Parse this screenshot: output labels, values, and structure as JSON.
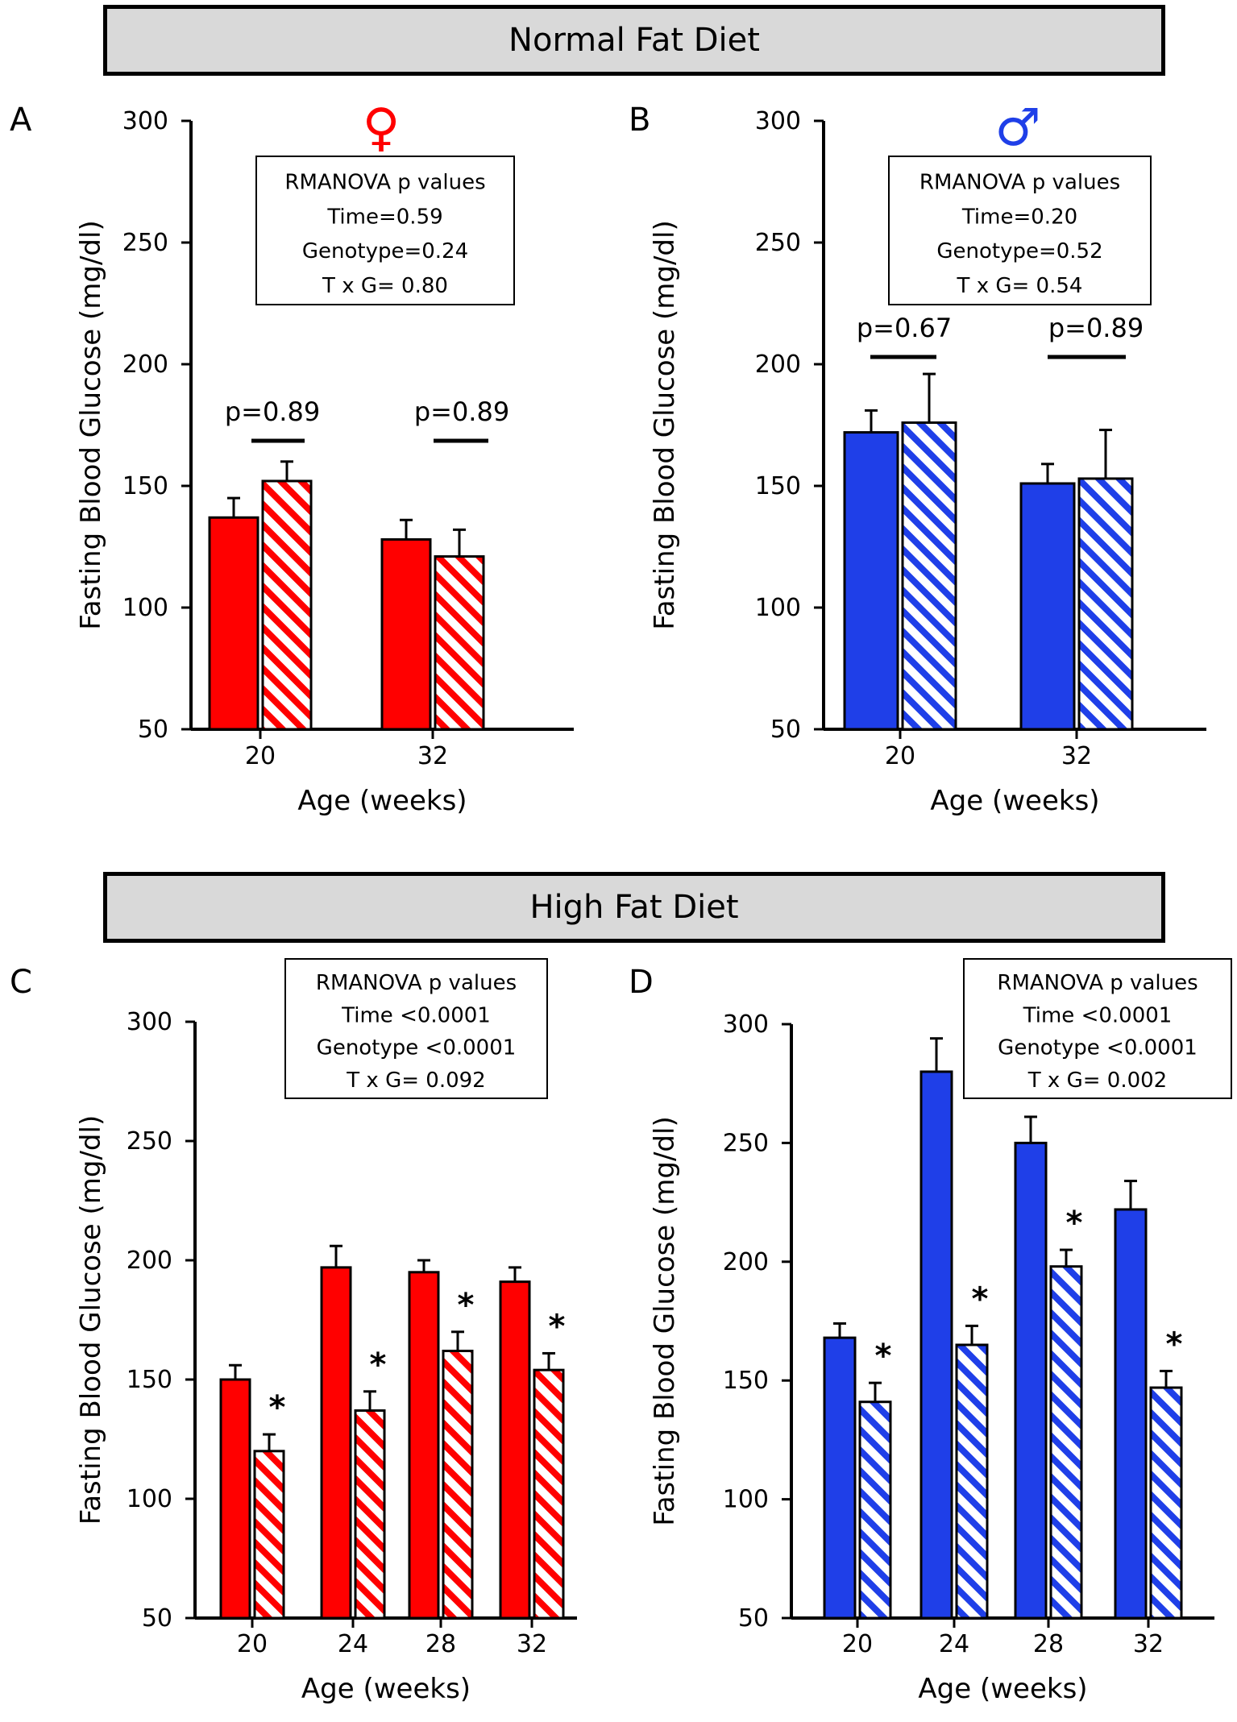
{
  "banners": {
    "normal": "Normal Fat Diet",
    "high": "High Fat Diet"
  },
  "colors": {
    "female": "#ff0000",
    "male": "#1f3fe8"
  },
  "chart_data": [
    {
      "id": "A",
      "type": "bar",
      "letter": "A",
      "symbol": "♀",
      "sex": "female",
      "title": "",
      "xlabel": "Age (weeks)",
      "ylabel": "Fasting Blood Glucose (mg/dl)",
      "ylim": [
        50,
        300
      ],
      "yticks": [
        "300",
        "250",
        "200",
        "150",
        "100",
        "50"
      ],
      "categories": [
        "20",
        "32"
      ],
      "series": [
        {
          "name": "solid",
          "values": [
            137,
            128
          ],
          "errors": [
            8,
            8
          ]
        },
        {
          "name": "hatched",
          "values": [
            152,
            121
          ],
          "errors": [
            8,
            11
          ]
        }
      ],
      "stats": [
        "RMANOVA p values",
        "Time=0.59",
        "Genotype=0.24",
        "T x G= 0.80"
      ],
      "pvalues": [
        "p=0.89",
        "p=0.89"
      ],
      "stars": []
    },
    {
      "id": "B",
      "type": "bar",
      "letter": "B",
      "symbol": "♂",
      "sex": "male",
      "title": "",
      "xlabel": "Age (weeks)",
      "ylabel": "Fasting Blood Glucose (mg/dl)",
      "ylim": [
        50,
        300
      ],
      "yticks": [
        "300",
        "250",
        "200",
        "150",
        "100",
        "50"
      ],
      "categories": [
        "20",
        "32"
      ],
      "series": [
        {
          "name": "solid",
          "values": [
            172,
            151
          ],
          "errors": [
            9,
            8
          ]
        },
        {
          "name": "hatched",
          "values": [
            176,
            153
          ],
          "errors": [
            20,
            20
          ]
        }
      ],
      "stats": [
        "RMANOVA p values",
        "Time=0.20",
        "Genotype=0.52",
        "T x G= 0.54"
      ],
      "pvalues": [
        "p=0.67",
        "p=0.89"
      ],
      "stars": []
    },
    {
      "id": "C",
      "type": "bar",
      "letter": "C",
      "symbol": "",
      "sex": "female",
      "title": "",
      "xlabel": "Age (weeks)",
      "ylabel": "Fasting Blood Glucose (mg/dl)",
      "ylim": [
        50,
        300
      ],
      "yticks": [
        "300",
        "250",
        "200",
        "150",
        "100",
        "50"
      ],
      "categories": [
        "20",
        "24",
        "28",
        "32"
      ],
      "series": [
        {
          "name": "solid",
          "values": [
            150,
            197,
            195,
            191
          ],
          "errors": [
            6,
            9,
            5,
            6
          ]
        },
        {
          "name": "hatched",
          "values": [
            120,
            137,
            162,
            154
          ],
          "errors": [
            7,
            8,
            8,
            7
          ]
        }
      ],
      "stats": [
        "RMANOVA p values",
        "Time <0.0001",
        "Genotype <0.0001",
        "T x G= 0.092"
      ],
      "pvalues": [],
      "stars": [
        "*",
        "*",
        "*",
        "*"
      ]
    },
    {
      "id": "D",
      "type": "bar",
      "letter": "D",
      "symbol": "",
      "sex": "male",
      "title": "",
      "xlabel": "Age (weeks)",
      "ylabel": "Fasting Blood Glucose (mg/dl)",
      "ylim": [
        50,
        300
      ],
      "yticks": [
        "300",
        "250",
        "200",
        "150",
        "100",
        "50"
      ],
      "categories": [
        "20",
        "24",
        "28",
        "32"
      ],
      "series": [
        {
          "name": "solid",
          "values": [
            168,
            280,
            250,
            222
          ],
          "errors": [
            6,
            14,
            11,
            12
          ]
        },
        {
          "name": "hatched",
          "values": [
            141,
            165,
            198,
            147
          ],
          "errors": [
            8,
            8,
            7,
            7
          ]
        }
      ],
      "stats": [
        "RMANOVA p values",
        "Time <0.0001",
        "Genotype <0.0001",
        "T x G= 0.002"
      ],
      "pvalues": [],
      "stars": [
        "*",
        "*",
        "*",
        "*"
      ]
    }
  ]
}
